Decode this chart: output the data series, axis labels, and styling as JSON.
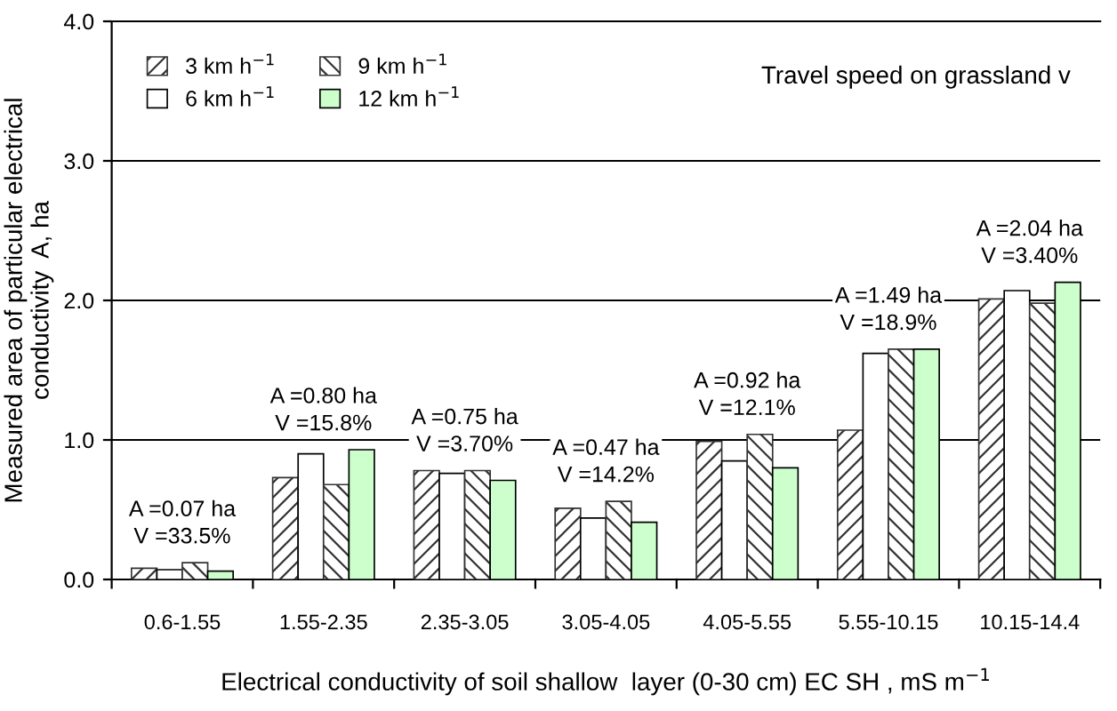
{
  "chart_data": {
    "type": "bar",
    "title": "Travel speed on grassland v",
    "xlabel": "Electrical conductivity of soil shallow  layer (0-30 cm) EC SH , mS m$^{−1}$",
    "ylabel": "Measured area of particular electrical\nconductivity  A, ha",
    "categories": [
      "0.6-1.55",
      "1.55-2.35",
      "2.35-3.05",
      "3.05-4.05",
      "4.05-5.55",
      "5.55-10.15",
      "10.15-14.4"
    ],
    "series": [
      {
        "name": "3 km h$^{−1}$",
        "color": "#333333",
        "values": [
          0.08,
          0.73,
          0.78,
          0.51,
          0.99,
          1.07,
          2.01
        ]
      },
      {
        "name": "6 km h$^{−1}$",
        "color": "#ffffff",
        "values": [
          0.07,
          0.9,
          0.76,
          0.44,
          0.85,
          1.62,
          2.07
        ]
      },
      {
        "name": "9 km h$^{−1}$",
        "color": "#333333",
        "values": [
          0.12,
          0.68,
          0.78,
          0.56,
          1.04,
          1.65,
          1.98
        ]
      },
      {
        "name": "12 km h$^{−1}$",
        "color": "#ccffcc",
        "values": [
          0.06,
          0.93,
          0.71,
          0.41,
          0.8,
          1.65,
          2.13
        ]
      }
    ],
    "ylim": [
      0,
      4
    ],
    "yticks": [
      {
        "value": 0,
        "label": "0.0"
      },
      {
        "value": 1,
        "label": "1.0"
      },
      {
        "value": 2,
        "label": "2.0"
      },
      {
        "value": 3,
        "label": "3.0"
      },
      {
        "value": 4,
        "label": "4.0"
      }
    ],
    "grid": "y",
    "legend": "top left",
    "annotations": [
      "A =0.07 ha\nV =33.5%",
      "A =0.80 ha\nV =15.8%",
      "A =0.75 ha\nV =3.70%",
      "A =0.47 ha\nV =14.2%",
      "A =0.92 ha\nV =12.1%",
      "A =1.49 ha\nV =18.9%",
      "A =2.04 ha\nV =3.40%"
    ]
  }
}
